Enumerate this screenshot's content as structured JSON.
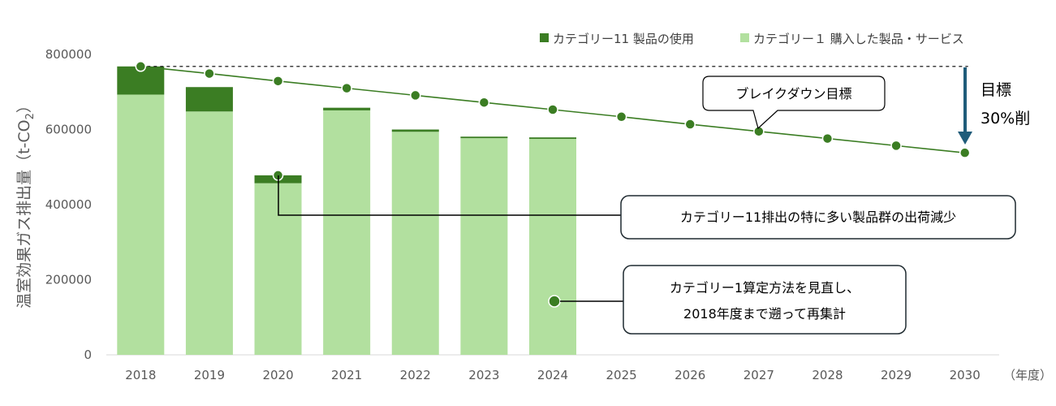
{
  "chart_data": {
    "type": "bar",
    "xunit": "（年度）",
    "ylabel": {
      "main": "温室効果ガス排出量（t-CO",
      "sub": "2",
      "tail": "）"
    },
    "ylim": [
      0,
      800000
    ],
    "yticks": [
      "0",
      "200000",
      "400000",
      "600000",
      "800000"
    ],
    "categories": [
      "2018",
      "2019",
      "2020",
      "2021",
      "2022",
      "2023",
      "2024",
      "2025",
      "2026",
      "2027",
      "2028",
      "2029",
      "2030"
    ],
    "series": [
      {
        "name": "カテゴリー１ 購入した製品・サービス",
        "kind": "bar",
        "values": [
          693000,
          648000,
          457000,
          651000,
          594000,
          577000,
          575000,
          null,
          null,
          null,
          null,
          null,
          null
        ]
      },
      {
        "name": "カテゴリー11 製品の使用",
        "kind": "bar",
        "values": [
          75000,
          65000,
          21000,
          7000,
          6000,
          4000,
          4000,
          null,
          null,
          null,
          null,
          null,
          null
        ]
      },
      {
        "kind": "line",
        "values": [
          768000,
          749000,
          729000,
          710000,
          691000,
          672000,
          653000,
          634000,
          614000,
          595000,
          576000,
          557000,
          538000
        ]
      }
    ],
    "legend": [
      "カテゴリー11 製品の使用",
      "カテゴリー１ 購入した製品・サービス"
    ],
    "target_reference": 768000,
    "annotations": {
      "breakdown": "ブレイクダウン目標",
      "target_line1": "目標",
      "target_line2": "30%削",
      "cat11_note": "カテゴリー11排出の特に多い製品群の出荷減少",
      "cat1_note_line1": "カテゴリー1算定方法を見直し、",
      "cat1_note_line2": "2018年度まで遡って再集計"
    },
    "colors": {
      "cat1": "#b2e09f",
      "cat11": "#3b7d23",
      "line": "#3b7d23",
      "marker": "#3b7d23",
      "arrow": "#1f5c7a",
      "axis": "#d9d9d9",
      "reference": "#000000"
    }
  }
}
